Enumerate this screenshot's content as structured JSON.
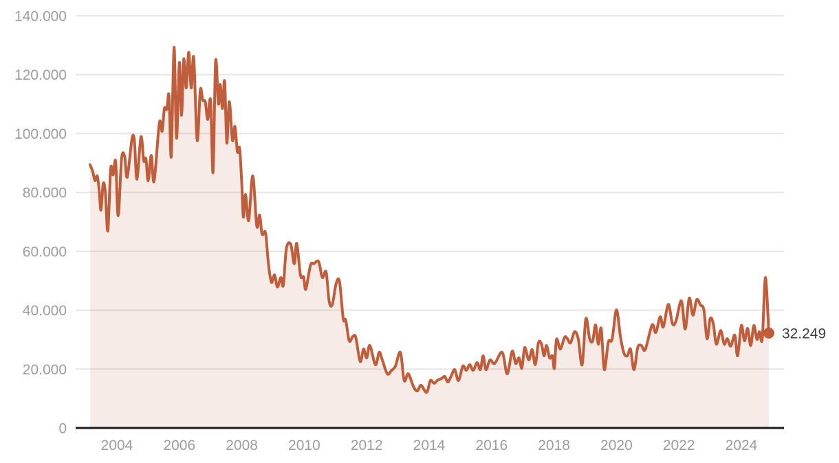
{
  "chart_data": {
    "type": "area",
    "xlabel": "",
    "ylabel": "",
    "xlim": [
      2003,
      2025.3
    ],
    "ylim": [
      0,
      140000
    ],
    "grid": "horizontal",
    "legend": "none",
    "colors": {
      "line": "#c05e3c",
      "fill": "rgba(192,94,60,0.12)",
      "gridline": "#e6e6e6",
      "axis_line": "#1c1c1c",
      "tick_text": "#9d9d9d",
      "end_label_text": "#3f3f3f"
    },
    "y_axis": {
      "ticks": [
        {
          "value": 0,
          "label": "0"
        },
        {
          "value": 20000,
          "label": "20.000"
        },
        {
          "value": 40000,
          "label": "40.000"
        },
        {
          "value": 60000,
          "label": "60.000"
        },
        {
          "value": 80000,
          "label": "80.000"
        },
        {
          "value": 100000,
          "label": "100.000"
        },
        {
          "value": 120000,
          "label": "120.000"
        },
        {
          "value": 140000,
          "label": "140.000"
        }
      ]
    },
    "x_axis": {
      "ticks": [
        {
          "year": 2004,
          "label": "2004"
        },
        {
          "year": 2006,
          "label": "2006"
        },
        {
          "year": 2008,
          "label": "2008"
        },
        {
          "year": 2010,
          "label": "2010"
        },
        {
          "year": 2012,
          "label": "2012"
        },
        {
          "year": 2014,
          "label": "2014"
        },
        {
          "year": 2016,
          "label": "2016"
        },
        {
          "year": 2018,
          "label": "2018"
        },
        {
          "year": 2020,
          "label": "2020"
        },
        {
          "year": 2022,
          "label": "2022"
        },
        {
          "year": 2024,
          "label": "2024"
        }
      ]
    },
    "end_marker": {
      "label": "32.249",
      "value": 32249,
      "year": 2024.88
    },
    "series": [
      {
        "name": "value",
        "points": [
          [
            2003.14,
            89400
          ],
          [
            2003.22,
            87300
          ],
          [
            2003.3,
            84000
          ],
          [
            2003.37,
            85600
          ],
          [
            2003.43,
            81000
          ],
          [
            2003.49,
            74000
          ],
          [
            2003.56,
            83000
          ],
          [
            2003.63,
            80000
          ],
          [
            2003.71,
            67000
          ],
          [
            2003.8,
            88000
          ],
          [
            2003.88,
            86000
          ],
          [
            2003.96,
            90500
          ],
          [
            2004.04,
            72100
          ],
          [
            2004.15,
            91500
          ],
          [
            2004.25,
            92200
          ],
          [
            2004.33,
            85200
          ],
          [
            2004.48,
            98000
          ],
          [
            2004.56,
            97700
          ],
          [
            2004.64,
            84500
          ],
          [
            2004.77,
            98900
          ],
          [
            2004.86,
            90800
          ],
          [
            2004.93,
            91500
          ],
          [
            2005.0,
            84000
          ],
          [
            2005.1,
            92600
          ],
          [
            2005.19,
            83800
          ],
          [
            2005.36,
            103600
          ],
          [
            2005.45,
            100800
          ],
          [
            2005.52,
            108500
          ],
          [
            2005.6,
            108300
          ],
          [
            2005.67,
            112900
          ],
          [
            2005.74,
            92200
          ],
          [
            2005.83,
            129300
          ],
          [
            2005.91,
            98400
          ],
          [
            2006.0,
            124100
          ],
          [
            2006.07,
            106200
          ],
          [
            2006.14,
            125300
          ],
          [
            2006.22,
            115500
          ],
          [
            2006.3,
            127600
          ],
          [
            2006.38,
            115500
          ],
          [
            2006.46,
            125800
          ],
          [
            2006.57,
            97700
          ],
          [
            2006.67,
            114800
          ],
          [
            2006.75,
            111300
          ],
          [
            2006.83,
            110800
          ],
          [
            2006.91,
            104800
          ],
          [
            2007.0,
            111300
          ],
          [
            2007.08,
            86800
          ],
          [
            2007.16,
            124600
          ],
          [
            2007.25,
            110100
          ],
          [
            2007.31,
            116700
          ],
          [
            2007.38,
            108500
          ],
          [
            2007.45,
            117800
          ],
          [
            2007.52,
            96800
          ],
          [
            2007.6,
            110800
          ],
          [
            2007.7,
            97700
          ],
          [
            2007.78,
            102400
          ],
          [
            2007.86,
            93800
          ],
          [
            2007.93,
            95000
          ],
          [
            2008.0,
            82800
          ],
          [
            2008.05,
            71600
          ],
          [
            2008.12,
            79300
          ],
          [
            2008.22,
            70500
          ],
          [
            2008.35,
            85600
          ],
          [
            2008.48,
            68600
          ],
          [
            2008.57,
            72300
          ],
          [
            2008.65,
            65800
          ],
          [
            2008.76,
            66300
          ],
          [
            2008.85,
            56000
          ],
          [
            2008.95,
            49500
          ],
          [
            2009.05,
            52000
          ],
          [
            2009.14,
            47900
          ],
          [
            2009.25,
            51100
          ],
          [
            2009.33,
            48500
          ],
          [
            2009.43,
            61100
          ],
          [
            2009.57,
            62300
          ],
          [
            2009.68,
            55800
          ],
          [
            2009.76,
            62700
          ],
          [
            2009.88,
            51800
          ],
          [
            2009.98,
            51300
          ],
          [
            2010.05,
            47100
          ],
          [
            2010.2,
            55300
          ],
          [
            2010.31,
            55800
          ],
          [
            2010.46,
            56500
          ],
          [
            2010.58,
            51100
          ],
          [
            2010.7,
            53000
          ],
          [
            2010.8,
            42900
          ],
          [
            2010.9,
            42000
          ],
          [
            2011.02,
            49000
          ],
          [
            2011.13,
            49700
          ],
          [
            2011.25,
            37100
          ],
          [
            2011.33,
            36600
          ],
          [
            2011.44,
            29600
          ],
          [
            2011.55,
            31000
          ],
          [
            2011.65,
            30800
          ],
          [
            2011.79,
            22600
          ],
          [
            2011.9,
            26800
          ],
          [
            2012.0,
            23800
          ],
          [
            2012.1,
            28000
          ],
          [
            2012.28,
            21500
          ],
          [
            2012.4,
            25700
          ],
          [
            2012.5,
            23100
          ],
          [
            2012.66,
            18400
          ],
          [
            2012.8,
            19600
          ],
          [
            2012.92,
            21000
          ],
          [
            2013.08,
            25700
          ],
          [
            2013.2,
            16100
          ],
          [
            2013.33,
            18400
          ],
          [
            2013.5,
            14000
          ],
          [
            2013.62,
            12600
          ],
          [
            2013.74,
            14500
          ],
          [
            2013.92,
            12100
          ],
          [
            2014.04,
            16100
          ],
          [
            2014.16,
            15200
          ],
          [
            2014.28,
            16300
          ],
          [
            2014.4,
            16800
          ],
          [
            2014.5,
            17500
          ],
          [
            2014.6,
            15600
          ],
          [
            2014.7,
            17500
          ],
          [
            2014.82,
            19800
          ],
          [
            2014.94,
            16100
          ],
          [
            2015.08,
            21000
          ],
          [
            2015.19,
            19600
          ],
          [
            2015.3,
            21500
          ],
          [
            2015.41,
            19600
          ],
          [
            2015.54,
            22200
          ],
          [
            2015.64,
            19800
          ],
          [
            2015.73,
            24500
          ],
          [
            2015.82,
            19800
          ],
          [
            2015.95,
            23100
          ],
          [
            2016.1,
            21900
          ],
          [
            2016.34,
            25700
          ],
          [
            2016.5,
            18400
          ],
          [
            2016.66,
            26100
          ],
          [
            2016.77,
            21900
          ],
          [
            2016.88,
            23800
          ],
          [
            2016.97,
            20300
          ],
          [
            2017.06,
            27300
          ],
          [
            2017.19,
            23100
          ],
          [
            2017.3,
            26600
          ],
          [
            2017.4,
            21500
          ],
          [
            2017.5,
            28900
          ],
          [
            2017.6,
            28500
          ],
          [
            2017.68,
            24500
          ],
          [
            2017.76,
            28000
          ],
          [
            2017.86,
            23800
          ],
          [
            2017.95,
            24500
          ],
          [
            2018.01,
            20300
          ],
          [
            2018.08,
            30100
          ],
          [
            2018.2,
            26800
          ],
          [
            2018.34,
            30800
          ],
          [
            2018.43,
            30300
          ],
          [
            2018.53,
            28900
          ],
          [
            2018.66,
            32700
          ],
          [
            2018.78,
            30100
          ],
          [
            2018.9,
            21500
          ],
          [
            2019.02,
            37100
          ],
          [
            2019.14,
            30300
          ],
          [
            2019.24,
            29600
          ],
          [
            2019.33,
            35000
          ],
          [
            2019.42,
            28500
          ],
          [
            2019.51,
            33800
          ],
          [
            2019.61,
            19800
          ],
          [
            2019.74,
            29200
          ],
          [
            2019.86,
            30100
          ],
          [
            2020.0,
            40100
          ],
          [
            2020.13,
            30800
          ],
          [
            2020.24,
            25400
          ],
          [
            2020.35,
            24500
          ],
          [
            2020.45,
            26800
          ],
          [
            2020.56,
            19800
          ],
          [
            2020.68,
            27300
          ],
          [
            2020.8,
            28000
          ],
          [
            2020.92,
            26600
          ],
          [
            2021.14,
            35000
          ],
          [
            2021.26,
            32400
          ],
          [
            2021.4,
            37800
          ],
          [
            2021.5,
            34300
          ],
          [
            2021.66,
            42000
          ],
          [
            2021.79,
            35500
          ],
          [
            2021.9,
            36200
          ],
          [
            2022.08,
            43200
          ],
          [
            2022.2,
            33600
          ],
          [
            2022.33,
            44100
          ],
          [
            2022.45,
            38300
          ],
          [
            2022.57,
            43600
          ],
          [
            2022.69,
            41800
          ],
          [
            2022.8,
            40100
          ],
          [
            2022.9,
            30300
          ],
          [
            2023.0,
            37100
          ],
          [
            2023.1,
            35500
          ],
          [
            2023.2,
            28500
          ],
          [
            2023.34,
            33100
          ],
          [
            2023.45,
            28500
          ],
          [
            2023.55,
            30300
          ],
          [
            2023.66,
            27800
          ],
          [
            2023.79,
            31500
          ],
          [
            2023.88,
            24500
          ],
          [
            2024.0,
            34800
          ],
          [
            2024.1,
            29600
          ],
          [
            2024.2,
            33800
          ],
          [
            2024.3,
            28000
          ],
          [
            2024.4,
            34800
          ],
          [
            2024.5,
            30100
          ],
          [
            2024.58,
            32700
          ],
          [
            2024.67,
            30300
          ],
          [
            2024.77,
            51100
          ],
          [
            2024.88,
            32249
          ]
        ]
      }
    ]
  }
}
